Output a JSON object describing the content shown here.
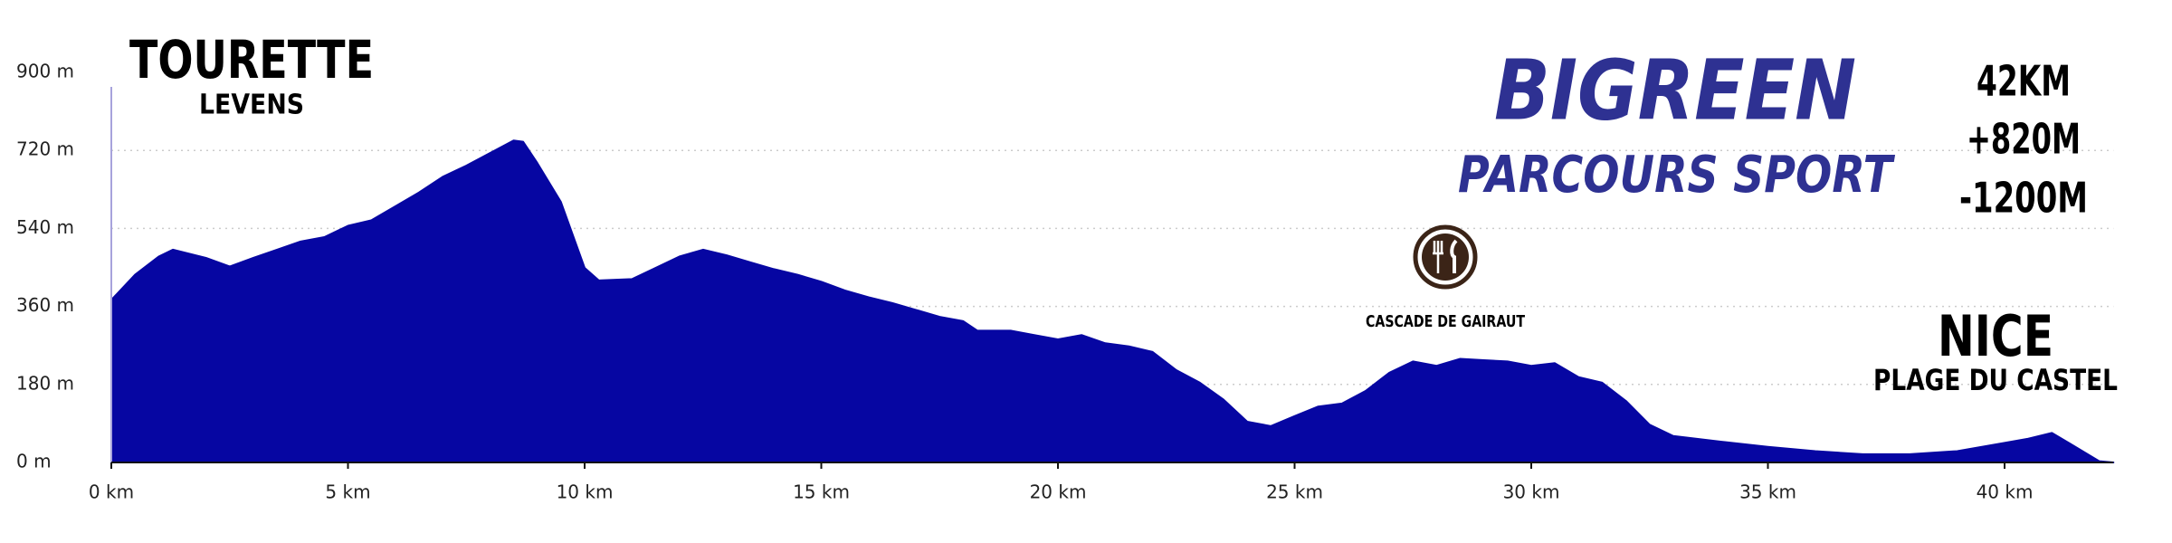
{
  "chart_data": {
    "type": "area",
    "color": "#0606a2",
    "x": [
      0,
      0.5,
      1,
      1.3,
      2,
      2.5,
      3,
      3.5,
      4,
      4.5,
      5,
      5.5,
      6,
      6.5,
      7,
      7.5,
      8,
      8.5,
      8.7,
      9,
      9.5,
      10,
      10.3,
      11,
      11.5,
      12,
      12.5,
      13,
      13.5,
      14,
      14.5,
      15,
      15.5,
      16,
      16.5,
      17,
      17.5,
      18,
      18.3,
      19,
      19.5,
      20,
      20.5,
      21,
      21.5,
      22,
      22.5,
      23,
      23.5,
      24,
      24.5,
      25,
      25.5,
      26,
      26.5,
      27,
      27.5,
      28,
      28.5,
      29,
      29.5,
      30,
      30.5,
      31,
      31.5,
      32,
      32.5,
      33,
      34,
      35,
      36,
      37,
      38,
      39,
      40,
      40.5,
      41,
      41.5,
      42,
      42.3
    ],
    "values": [
      375,
      433,
      475,
      491,
      472,
      452,
      472,
      491,
      510,
      520,
      546,
      559,
      591,
      623,
      659,
      685,
      714,
      743,
      740,
      691,
      601,
      449,
      420,
      423,
      449,
      475,
      491,
      478,
      462,
      446,
      433,
      417,
      397,
      381,
      368,
      352,
      336,
      326,
      304,
      304,
      294,
      284,
      294,
      275,
      268,
      255,
      213,
      184,
      145,
      94,
      84,
      107,
      129,
      136,
      165,
      207,
      233,
      223,
      239,
      236,
      233,
      223,
      229,
      197,
      184,
      142,
      87,
      61,
      48,
      36,
      26,
      19,
      19,
      26,
      45,
      55,
      68,
      36,
      3,
      0
    ],
    "xlim": [
      0,
      42.3
    ],
    "ylim": [
      0,
      900
    ],
    "xticks": [
      {
        "value": 0,
        "label": "0 km"
      },
      {
        "value": 5,
        "label": "5 km"
      },
      {
        "value": 10,
        "label": "10 km"
      },
      {
        "value": 15,
        "label": "15 km"
      },
      {
        "value": 20,
        "label": "20 km"
      },
      {
        "value": 25,
        "label": "25 km"
      },
      {
        "value": 30,
        "label": "30 km"
      },
      {
        "value": 35,
        "label": "35 km"
      },
      {
        "value": 40,
        "label": "40 km"
      }
    ],
    "yticks": [
      {
        "value": 0,
        "label": "0 m"
      },
      {
        "value": 180,
        "label": "180 m"
      },
      {
        "value": 360,
        "label": "360 m"
      },
      {
        "value": 540,
        "label": "540 m"
      },
      {
        "value": 720,
        "label": "720 m"
      },
      {
        "value": 900,
        "label": "900 m"
      }
    ],
    "grid": true,
    "annotations": [
      "TOURETTE",
      "LEVENS",
      "BIGREEN",
      "PARCOURS SPORT",
      "42KM",
      "+820M",
      "-1200M",
      "CASCADE DE GAIRAUT",
      "NICE",
      "PLAGE DU CASTEL"
    ]
  }
}
